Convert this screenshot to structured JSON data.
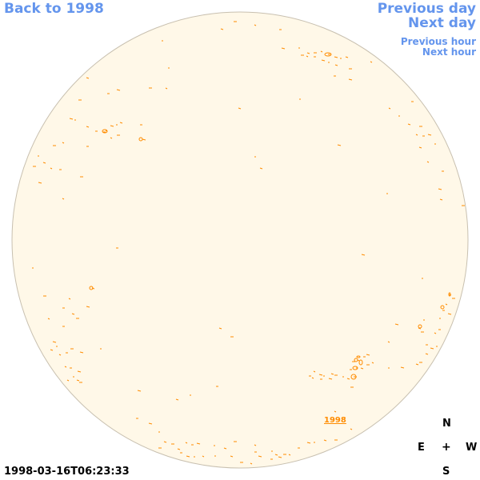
{
  "nav": {
    "back": "Back to 1998",
    "previous_day": "Previous day",
    "next_day": "Next day",
    "previous_hour": "Previous hour",
    "next_hour": "Next hour"
  },
  "compass": {
    "north": "N",
    "east": "E",
    "center": "+",
    "west": "W",
    "south": "S"
  },
  "timestamp": "1998-03-16T06:23:33",
  "disk_label": "1998",
  "colors": {
    "link": "#6495ed",
    "disk_fill": "#fff8e8",
    "disk_edge": "#c8c0b0",
    "contour": "#ff8c00"
  }
}
